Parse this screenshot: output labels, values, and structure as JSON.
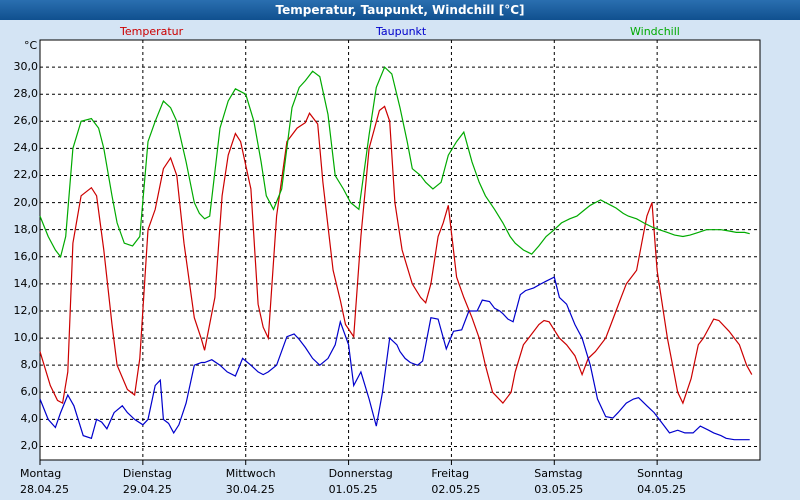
{
  "window": {
    "title": "Temperatur, Taupunkt, Windchill [°C]"
  },
  "colors": {
    "temperatur": "#cc0000",
    "taupunkt": "#0000cc",
    "windchill": "#00aa00",
    "plot_bg": "#ffffff",
    "page_bg": "#d4e4f4"
  },
  "chart_data": {
    "type": "line",
    "title": "Temperatur, Taupunkt, Windchill [°C]",
    "yunit": "°C",
    "ylim": [
      1.0,
      32.0
    ],
    "xlim": [
      0,
      7.0
    ],
    "yticks": [
      "2,0",
      "4,0",
      "6,0",
      "8,0",
      "10,0",
      "12,0",
      "14,0",
      "16,0",
      "18,0",
      "20,0",
      "22,0",
      "24,0",
      "26,0",
      "28,0",
      "30,0"
    ],
    "x_ticks": [
      {
        "weekday": "Montag",
        "date": "28.04.25",
        "x": 0
      },
      {
        "weekday": "Dienstag",
        "date": "29.04.25",
        "x": 1
      },
      {
        "weekday": "Mittwoch",
        "date": "30.04.25",
        "x": 2
      },
      {
        "weekday": "Donnerstag",
        "date": "01.05.25",
        "x": 3
      },
      {
        "weekday": "Freitag",
        "date": "02.05.25",
        "x": 4
      },
      {
        "weekday": "Samstag",
        "date": "03.05.25",
        "x": 5
      },
      {
        "weekday": "Sonntag",
        "date": "04.05.25",
        "x": 6
      }
    ],
    "grid": true,
    "legend_position": "top",
    "series": [
      {
        "name": "Temperatur",
        "x": [
          0,
          0.1,
          0.17,
          0.22,
          0.27,
          0.32,
          0.4,
          0.5,
          0.55,
          0.62,
          0.7,
          0.75,
          0.85,
          0.92,
          0.97,
          1.05,
          1.12,
          1.2,
          1.27,
          1.33,
          1.4,
          1.5,
          1.57,
          1.6,
          1.7,
          1.77,
          1.83,
          1.9,
          1.95,
          2.05,
          2.12,
          2.17,
          2.22,
          2.3,
          2.4,
          2.5,
          2.58,
          2.62,
          2.7,
          2.75,
          2.85,
          2.92,
          2.97,
          3.05,
          3.12,
          3.2,
          3.3,
          3.35,
          3.4,
          3.45,
          3.52,
          3.58,
          3.62,
          3.7,
          3.75,
          3.8,
          3.87,
          3.92,
          3.97,
          4.05,
          4.12,
          4.2,
          4.27,
          4.33,
          4.4,
          4.5,
          4.58,
          4.62,
          4.7,
          4.75,
          4.85,
          4.9,
          4.95,
          5.05,
          5.12,
          5.2,
          5.27,
          5.33,
          5.4,
          5.5,
          5.55,
          5.6,
          5.65,
          5.7,
          5.8,
          5.85,
          5.9,
          5.95,
          6.0,
          6.1,
          6.15,
          6.2,
          6.25,
          6.33,
          6.4,
          6.45,
          6.55,
          6.6,
          6.7,
          6.75,
          6.8,
          6.87,
          6.92
        ],
        "y": [
          9.0,
          6.5,
          5.4,
          5.2,
          7.5,
          17.0,
          20.5,
          21.1,
          20.5,
          16.5,
          11.0,
          8.0,
          6.2,
          5.8,
          8.5,
          18.0,
          19.5,
          22.5,
          23.3,
          22.0,
          17.0,
          11.5,
          9.9,
          9.1,
          13.0,
          20.5,
          23.5,
          25.1,
          24.5,
          21.0,
          12.5,
          10.8,
          10.0,
          19.0,
          24.5,
          25.5,
          25.9,
          26.6,
          25.8,
          21.5,
          15.0,
          12.8,
          11.0,
          10.1,
          17.5,
          24.0,
          26.8,
          27.1,
          26.0,
          20.0,
          16.5,
          15.0,
          14.0,
          13.0,
          12.6,
          14.0,
          17.5,
          18.5,
          19.8,
          14.5,
          13.0,
          11.5,
          10.0,
          8.0,
          6.0,
          5.2,
          6.0,
          7.5,
          9.5,
          10.0,
          11.0,
          11.3,
          11.2,
          10.0,
          9.5,
          8.7,
          7.3,
          8.5,
          9.0,
          10.0,
          11.0,
          12.0,
          13.0,
          14.0,
          15.0,
          17.0,
          19.0,
          20.0,
          15.0,
          10.0,
          8.0,
          6.0,
          5.2,
          7.0,
          9.5,
          10.0,
          11.4,
          11.3,
          10.5,
          10.0,
          9.5,
          8.0,
          7.3
        ]
      },
      {
        "name": "Taupunkt",
        "x": [
          0,
          0.08,
          0.15,
          0.2,
          0.27,
          0.33,
          0.42,
          0.5,
          0.55,
          0.6,
          0.65,
          0.72,
          0.8,
          0.85,
          0.92,
          1.0,
          1.05,
          1.12,
          1.17,
          1.2,
          1.25,
          1.3,
          1.35,
          1.42,
          1.5,
          1.57,
          1.6,
          1.67,
          1.75,
          1.82,
          1.9,
          1.97,
          2.05,
          2.12,
          2.17,
          2.22,
          2.3,
          2.4,
          2.47,
          2.52,
          2.58,
          2.65,
          2.72,
          2.8,
          2.87,
          2.92,
          3.0,
          3.05,
          3.12,
          3.2,
          3.27,
          3.33,
          3.4,
          3.47,
          3.5,
          3.55,
          3.6,
          3.67,
          3.72,
          3.8,
          3.87,
          3.95,
          4.02,
          4.1,
          4.17,
          4.25,
          4.3,
          4.37,
          4.42,
          4.47,
          4.5,
          4.55,
          4.6,
          4.67,
          4.72,
          4.8,
          4.87,
          4.92,
          5.0,
          5.05,
          5.12,
          5.2,
          5.27,
          5.35,
          5.42,
          5.5,
          5.57,
          5.62,
          5.7,
          5.77,
          5.82,
          5.9,
          5.97,
          6.05,
          6.12,
          6.2,
          6.27,
          6.35,
          6.42,
          6.5,
          6.55,
          6.62,
          6.67,
          6.75,
          6.82,
          6.9
        ],
        "y": [
          5.5,
          4.0,
          3.4,
          4.5,
          5.8,
          5.0,
          2.8,
          2.6,
          4.0,
          3.8,
          3.3,
          4.5,
          5.0,
          4.5,
          4.0,
          3.6,
          4.0,
          6.5,
          6.9,
          4.0,
          3.7,
          3.0,
          3.6,
          5.2,
          8.0,
          8.2,
          8.2,
          8.4,
          8.0,
          7.5,
          7.2,
          8.5,
          8.0,
          7.5,
          7.3,
          7.5,
          8.0,
          10.1,
          10.3,
          9.9,
          9.3,
          8.5,
          8.0,
          8.5,
          9.5,
          11.2,
          9.5,
          6.5,
          7.5,
          5.5,
          3.5,
          6.0,
          10.0,
          9.5,
          9.0,
          8.5,
          8.2,
          8.0,
          8.3,
          11.5,
          11.4,
          9.2,
          10.5,
          10.6,
          12.0,
          12.0,
          12.8,
          12.7,
          12.2,
          12.0,
          11.8,
          11.4,
          11.2,
          13.2,
          13.5,
          13.7,
          14.0,
          14.2,
          14.5,
          13.0,
          12.5,
          11.0,
          10.0,
          8.0,
          5.5,
          4.2,
          4.1,
          4.5,
          5.2,
          5.5,
          5.6,
          5.0,
          4.5,
          3.7,
          3.0,
          3.2,
          3.0,
          3.0,
          3.5,
          3.2,
          3.0,
          2.8,
          2.6,
          2.5,
          2.5,
          2.5
        ]
      },
      {
        "name": "Windchill",
        "x": [
          0,
          0.08,
          0.15,
          0.2,
          0.25,
          0.32,
          0.4,
          0.5,
          0.57,
          0.62,
          0.7,
          0.75,
          0.82,
          0.9,
          0.97,
          1.05,
          1.12,
          1.2,
          1.27,
          1.33,
          1.42,
          1.5,
          1.55,
          1.6,
          1.65,
          1.75,
          1.83,
          1.9,
          2.0,
          2.08,
          2.15,
          2.2,
          2.27,
          2.35,
          2.45,
          2.52,
          2.58,
          2.65,
          2.72,
          2.8,
          2.87,
          2.95,
          3.02,
          3.1,
          3.2,
          3.27,
          3.35,
          3.42,
          3.5,
          3.57,
          3.62,
          3.7,
          3.75,
          3.82,
          3.9,
          3.97,
          4.05,
          4.12,
          4.2,
          4.27,
          4.33,
          4.42,
          4.5,
          4.57,
          4.62,
          4.7,
          4.78,
          4.85,
          4.92,
          5.0,
          5.07,
          5.15,
          5.22,
          5.3,
          5.35,
          5.4,
          5.45,
          5.5,
          5.55,
          5.6,
          5.67,
          5.72,
          5.8,
          5.87,
          5.95,
          6.02,
          6.1,
          6.17,
          6.25,
          6.32,
          6.4,
          6.48,
          6.55,
          6.62,
          6.7,
          6.77,
          6.85,
          6.9
        ],
        "y": [
          19.0,
          17.5,
          16.5,
          16.0,
          17.5,
          24.0,
          26.0,
          26.2,
          25.5,
          24.0,
          20.5,
          18.5,
          17.0,
          16.8,
          17.5,
          24.5,
          26.0,
          27.5,
          27.0,
          26.0,
          23.0,
          20.0,
          19.2,
          18.8,
          19.0,
          25.5,
          27.5,
          28.4,
          28.0,
          26.0,
          23.0,
          20.5,
          19.5,
          21.0,
          27.0,
          28.5,
          29.0,
          29.7,
          29.3,
          26.5,
          22.0,
          21.0,
          20.0,
          19.5,
          25.0,
          28.5,
          30.0,
          29.5,
          27.0,
          24.5,
          22.5,
          22.0,
          21.5,
          21.0,
          21.5,
          23.5,
          24.5,
          25.2,
          23.0,
          21.5,
          20.5,
          19.5,
          18.5,
          17.5,
          17.0,
          16.5,
          16.2,
          16.8,
          17.5,
          18.0,
          18.5,
          18.8,
          19.0,
          19.5,
          19.8,
          20.0,
          20.2,
          20.0,
          19.8,
          19.6,
          19.2,
          19.0,
          18.8,
          18.5,
          18.2,
          18.0,
          17.8,
          17.6,
          17.5,
          17.6,
          17.8,
          18.0,
          18.0,
          18.0,
          17.9,
          17.8,
          17.8,
          17.7
        ]
      }
    ]
  }
}
